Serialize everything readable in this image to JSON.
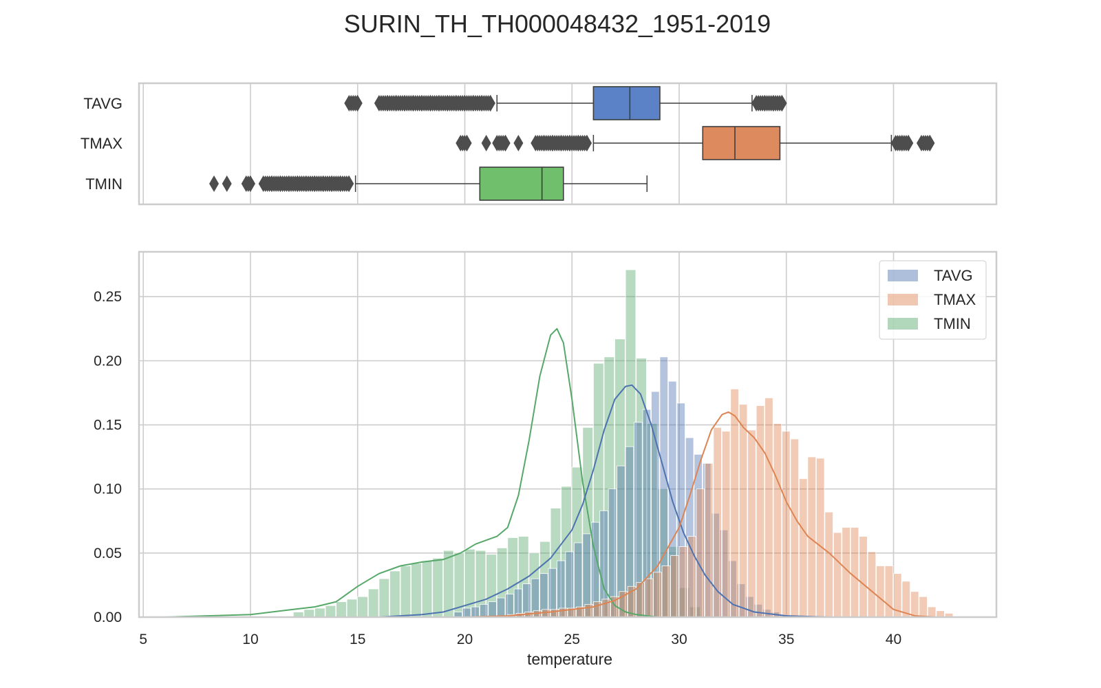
{
  "title": "SURIN_TH_TH000048432_1951-2019",
  "colors": {
    "TAVG": "#4c72b0",
    "TMAX": "#dd8452",
    "TMIN": "#55a868",
    "TAVG_fill": "#a6bddb",
    "TMAX_fill": "#f4b896",
    "TMIN_fill": "#a8dba0",
    "outlier": "#4d4d4d"
  },
  "chart_data": [
    {
      "type": "box",
      "categories": [
        "TAVG",
        "TMAX",
        "TMIN"
      ],
      "xlim": [
        4.8,
        44.8
      ],
      "xticks": [
        5,
        10,
        15,
        20,
        25,
        30,
        35,
        40
      ],
      "grid": true,
      "boxes": [
        {
          "name": "TAVG",
          "whisker_low": 21.5,
          "q1": 26.0,
          "median": 27.7,
          "q3": 29.1,
          "whisker_high": 33.4,
          "outliers": [
            14.6,
            15.0,
            16.0,
            16.4,
            16.8,
            17.2,
            17.6,
            18.0,
            18.4,
            18.8,
            19.2,
            19.6,
            20.0,
            20.4,
            20.8,
            21.2,
            33.6,
            34.0,
            34.4,
            34.8
          ]
        },
        {
          "name": "TMAX",
          "whisker_low": 26.0,
          "q1": 31.1,
          "median": 32.6,
          "q3": 34.7,
          "whisker_high": 39.9,
          "outliers": [
            19.8,
            20.1,
            21.0,
            21.5,
            21.9,
            22.5,
            23.3,
            23.7,
            24.1,
            24.5,
            24.9,
            25.3,
            25.7,
            40.1,
            40.4,
            40.7,
            41.3,
            41.7
          ]
        },
        {
          "name": "TMIN",
          "whisker_low": 14.9,
          "q1": 20.7,
          "median": 23.6,
          "q3": 24.6,
          "whisker_high": 28.5,
          "outliers": [
            8.3,
            8.9,
            9.8,
            10.0,
            10.6,
            11.0,
            11.4,
            11.8,
            12.2,
            12.6,
            13.0,
            13.4,
            13.8,
            14.2,
            14.6
          ]
        }
      ]
    },
    {
      "type": "histogram",
      "xlabel": "temperature",
      "xlim": [
        4.8,
        44.8
      ],
      "ylim": [
        0,
        0.285
      ],
      "xticks": [
        5,
        10,
        15,
        20,
        25,
        30,
        35,
        40
      ],
      "yticks": [
        0.0,
        0.05,
        0.1,
        0.15,
        0.2,
        0.25
      ],
      "legend": "top-right",
      "grid": true,
      "series": [
        {
          "name": "TMIN",
          "bin_start": 12.0,
          "bin_width": 0.5,
          "values": [
            0.004,
            0.006,
            0.007,
            0.009,
            0.012,
            0.014,
            0.016,
            0.022,
            0.03,
            0.036,
            0.04,
            0.042,
            0.044,
            0.046,
            0.052,
            0.05,
            0.053,
            0.052,
            0.049,
            0.054,
            0.062,
            0.063,
            0.05,
            0.059,
            0.085,
            0.102,
            0.117,
            0.148,
            0.198,
            0.203,
            0.217,
            0.271,
            0.202,
            0.151,
            0.1,
            0.055,
            0.023,
            0.008
          ],
          "kde_x": [
            6,
            8,
            10,
            11,
            12,
            13,
            14,
            15,
            16,
            17,
            18,
            19,
            19.8,
            20.5,
            21.0,
            21.5,
            22.0,
            22.5,
            23.0,
            23.5,
            24.0,
            24.3,
            24.6,
            25.0,
            25.5,
            26.0,
            26.5,
            27.0,
            27.5,
            28.0,
            29.0,
            30.0
          ],
          "kde_y": [
            0.0,
            0.001,
            0.002,
            0.004,
            0.006,
            0.008,
            0.012,
            0.024,
            0.034,
            0.04,
            0.043,
            0.045,
            0.05,
            0.057,
            0.06,
            0.063,
            0.07,
            0.095,
            0.138,
            0.188,
            0.22,
            0.225,
            0.214,
            0.17,
            0.105,
            0.055,
            0.022,
            0.009,
            0.004,
            0.002,
            0.0,
            0.0
          ]
        },
        {
          "name": "TAVG",
          "bin_start": 19.5,
          "bin_width": 0.4,
          "values": [
            0.004,
            0.007,
            0.008,
            0.01,
            0.012,
            0.015,
            0.018,
            0.022,
            0.026,
            0.03,
            0.034,
            0.038,
            0.044,
            0.051,
            0.058,
            0.065,
            0.074,
            0.083,
            0.1,
            0.118,
            0.133,
            0.152,
            0.162,
            0.176,
            0.203,
            0.184,
            0.167,
            0.14,
            0.127,
            0.12,
            0.081,
            0.068,
            0.044,
            0.026,
            0.016,
            0.01,
            0.006,
            0.004,
            0.002
          ],
          "kde_x": [
            16,
            18,
            19,
            20,
            21,
            22,
            23,
            24,
            25,
            25.5,
            26,
            26.5,
            27,
            27.5,
            27.8,
            28.2,
            28.7,
            29.2,
            29.7,
            30.2,
            30.7,
            31.2,
            31.8,
            32.5,
            33.5,
            35,
            37
          ],
          "kde_y": [
            0.0,
            0.002,
            0.004,
            0.009,
            0.014,
            0.022,
            0.032,
            0.046,
            0.068,
            0.088,
            0.115,
            0.146,
            0.17,
            0.18,
            0.181,
            0.174,
            0.15,
            0.12,
            0.09,
            0.066,
            0.048,
            0.033,
            0.02,
            0.01,
            0.004,
            0.001,
            0.0
          ],
          "draw_start": 20.0
        },
        {
          "name": "TMAX",
          "bin_start": 22.0,
          "bin_width": 0.4,
          "values": [
            0.002,
            0.003,
            0.004,
            0.005,
            0.006,
            0.006,
            0.007,
            0.007,
            0.008,
            0.01,
            0.012,
            0.014,
            0.016,
            0.02,
            0.024,
            0.027,
            0.03,
            0.035,
            0.04,
            0.048,
            0.055,
            0.063,
            0.1,
            0.12,
            0.148,
            0.145,
            0.178,
            0.166,
            0.146,
            0.165,
            0.171,
            0.151,
            0.145,
            0.139,
            0.108,
            0.125,
            0.124,
            0.082,
            0.066,
            0.07,
            0.07,
            0.063,
            0.051,
            0.04,
            0.04,
            0.034,
            0.028,
            0.02,
            0.016,
            0.008,
            0.005,
            0.003
          ],
          "kde_x": [
            20,
            22,
            24,
            26,
            27,
            28,
            29,
            30,
            30.5,
            31,
            31.5,
            32,
            32.3,
            32.6,
            33,
            33.5,
            34,
            34.5,
            35,
            35.5,
            36,
            37,
            38,
            39,
            40,
            41,
            42,
            43
          ],
          "kde_y": [
            0.0,
            0.001,
            0.004,
            0.008,
            0.013,
            0.022,
            0.04,
            0.07,
            0.095,
            0.122,
            0.146,
            0.158,
            0.16,
            0.157,
            0.148,
            0.14,
            0.128,
            0.11,
            0.09,
            0.075,
            0.063,
            0.05,
            0.034,
            0.02,
            0.006,
            0.001,
            0.0,
            0.0
          ]
        }
      ]
    }
  ]
}
